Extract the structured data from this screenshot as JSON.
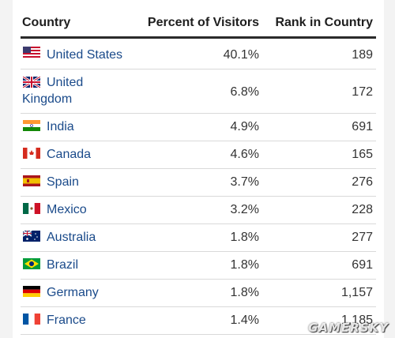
{
  "table": {
    "headers": {
      "country": "Country",
      "percent": "Percent of Visitors",
      "rank": "Rank in Country"
    },
    "rows": [
      {
        "country": "United States",
        "flag": "us-flag-icon",
        "percent": "40.1%",
        "rank": "189"
      },
      {
        "country_line1": "United",
        "country_line2": "Kingdom",
        "flag": "uk-flag-icon",
        "percent": "6.8%",
        "rank": "172"
      },
      {
        "country": "India",
        "flag": "india-flag-icon",
        "percent": "4.9%",
        "rank": "691"
      },
      {
        "country": "Canada",
        "flag": "canada-flag-icon",
        "percent": "4.6%",
        "rank": "165"
      },
      {
        "country": "Spain",
        "flag": "spain-flag-icon",
        "percent": "3.7%",
        "rank": "276"
      },
      {
        "country": "Mexico",
        "flag": "mexico-flag-icon",
        "percent": "3.2%",
        "rank": "228"
      },
      {
        "country": "Australia",
        "flag": "australia-flag-icon",
        "percent": "1.8%",
        "rank": "277"
      },
      {
        "country": "Brazil",
        "flag": "brazil-flag-icon",
        "percent": "1.8%",
        "rank": "691"
      },
      {
        "country": "Germany",
        "flag": "germany-flag-icon",
        "percent": "1.8%",
        "rank": "1,157"
      },
      {
        "country": "France",
        "flag": "france-flag-icon",
        "percent": "1.4%",
        "rank": "1,185"
      }
    ]
  },
  "watermark": "GAMERSKY",
  "colors": {
    "link": "#1a4a8a",
    "header_rule": "#2a2a2a",
    "row_rule": "#d9d9d9"
  }
}
